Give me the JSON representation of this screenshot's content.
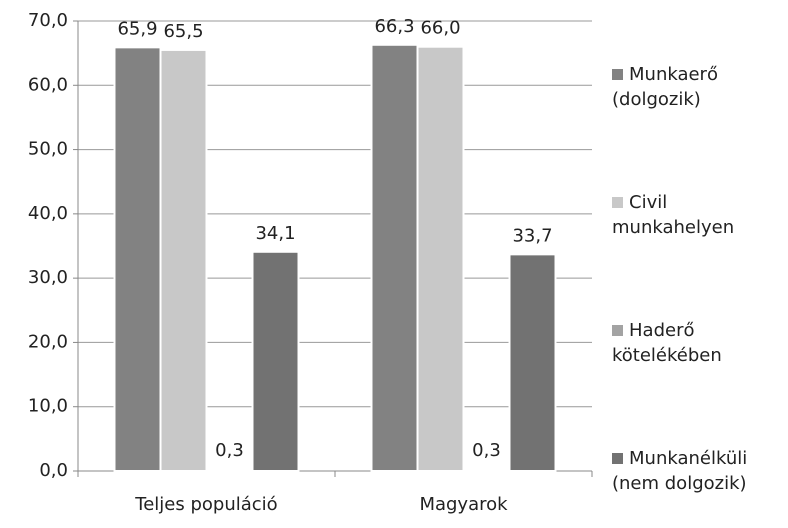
{
  "chart_data": {
    "type": "bar",
    "categories": [
      "Teljes populáció",
      "Magyarok"
    ],
    "series": [
      {
        "name": "Munkaerő (dolgozik)",
        "color": "#828282",
        "values": [
          65.9,
          66.3
        ],
        "value_labels": [
          "65,9",
          "66,3"
        ]
      },
      {
        "name": "Civil munkahelyen",
        "color": "#c8c8c8",
        "values": [
          65.5,
          66.0
        ],
        "value_labels": [
          "65,5",
          "66,0"
        ]
      },
      {
        "name": "Haderő kötelékében",
        "color": "#a3a3a3",
        "values": [
          0.3,
          0.3
        ],
        "value_labels": [
          "0,3",
          "0,3"
        ]
      },
      {
        "name": "Munkanélküli (nem dolgozik)",
        "color": "#727272",
        "values": [
          34.1,
          33.7
        ],
        "value_labels": [
          "34,1",
          "33,7"
        ]
      }
    ],
    "ylim": [
      0,
      70
    ],
    "yticks": [
      {
        "value": 0,
        "label": "0,0"
      },
      {
        "value": 10,
        "label": "10,0"
      },
      {
        "value": 20,
        "label": "20,0"
      },
      {
        "value": 30,
        "label": "30,0"
      },
      {
        "value": 40,
        "label": "40,0"
      },
      {
        "value": 50,
        "label": "50,0"
      },
      {
        "value": 60,
        "label": "60,0"
      },
      {
        "value": 70,
        "label": "70,0"
      }
    ],
    "grid": true,
    "legend": "right"
  }
}
